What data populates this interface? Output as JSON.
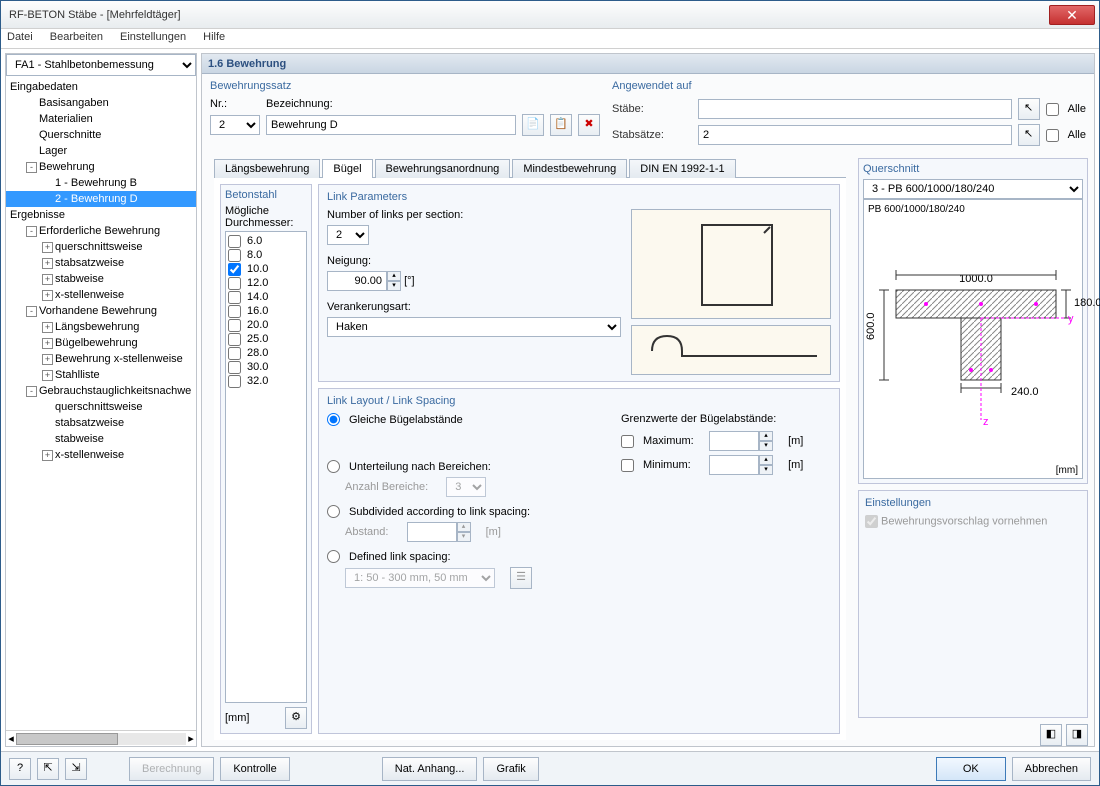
{
  "window": {
    "title": "RF-BETON Stäbe - [Mehrfeldtäger]"
  },
  "menu": [
    "Datei",
    "Bearbeiten",
    "Einstellungen",
    "Hilfe"
  ],
  "leftCase": "FA1 - Stahlbetonbemessung",
  "tree": [
    {
      "t": "Eingabedaten",
      "lvl": 1
    },
    {
      "t": "Basisangaben",
      "lvl": 2
    },
    {
      "t": "Materialien",
      "lvl": 2
    },
    {
      "t": "Querschnitte",
      "lvl": 2
    },
    {
      "t": "Lager",
      "lvl": 2
    },
    {
      "t": "Bewehrung",
      "lvl": 2,
      "exp": "-"
    },
    {
      "t": "1 - Bewehrung B",
      "lvl": 3
    },
    {
      "t": "2 - Bewehrung D",
      "lvl": 3,
      "sel": true
    },
    {
      "t": "Ergebnisse",
      "lvl": 1
    },
    {
      "t": "Erforderliche Bewehrung",
      "lvl": 2,
      "exp": "-"
    },
    {
      "t": "querschnittsweise",
      "lvl": 3,
      "exp": "+"
    },
    {
      "t": "stabsatzweise",
      "lvl": 3,
      "exp": "+"
    },
    {
      "t": "stabweise",
      "lvl": 3,
      "exp": "+"
    },
    {
      "t": "x-stellenweise",
      "lvl": 3,
      "exp": "+"
    },
    {
      "t": "Vorhandene Bewehrung",
      "lvl": 2,
      "exp": "-"
    },
    {
      "t": "Längsbewehrung",
      "lvl": 3,
      "exp": "+"
    },
    {
      "t": "Bügelbewehrung",
      "lvl": 3,
      "exp": "+"
    },
    {
      "t": "Bewehrung x-stellenweise",
      "lvl": 3,
      "exp": "+"
    },
    {
      "t": "Stahlliste",
      "lvl": 3,
      "exp": "+"
    },
    {
      "t": "Gebrauchstauglichkeitsnachwe",
      "lvl": 2,
      "exp": "-"
    },
    {
      "t": "querschnittsweise",
      "lvl": 3
    },
    {
      "t": "stabsatzweise",
      "lvl": 3
    },
    {
      "t": "stabweise",
      "lvl": 3
    },
    {
      "t": "x-stellenweise",
      "lvl": 3,
      "exp": "+"
    }
  ],
  "header": "1.6 Bewehrung",
  "bewehrungssatz": {
    "title": "Bewehrungssatz",
    "nr_label": "Nr.:",
    "nr_value": "2",
    "bez_label": "Bezeichnung:",
    "bez_value": "Bewehrung D"
  },
  "angewendet": {
    "title": "Angewendet auf",
    "stabe_label": "Stäbe:",
    "stabe_value": "",
    "stabsatz_label": "Stabsätze:",
    "stabsatz_value": "2",
    "alle": "Alle"
  },
  "tabs": [
    "Längsbewehrung",
    "Bügel",
    "Bewehrungsanordnung",
    "Mindestbewehrung",
    "DIN EN 1992-1-1"
  ],
  "activeTab": 1,
  "betonstahl": {
    "title": "Betonstahl",
    "sub": "Mögliche Durchmesser:",
    "diams": [
      {
        "v": "6.0",
        "c": false
      },
      {
        "v": "8.0",
        "c": false
      },
      {
        "v": "10.0",
        "c": true
      },
      {
        "v": "12.0",
        "c": false
      },
      {
        "v": "14.0",
        "c": false
      },
      {
        "v": "16.0",
        "c": false
      },
      {
        "v": "20.0",
        "c": false
      },
      {
        "v": "25.0",
        "c": false
      },
      {
        "v": "28.0",
        "c": false
      },
      {
        "v": "30.0",
        "c": false
      },
      {
        "v": "32.0",
        "c": false
      }
    ],
    "unit": "[mm]"
  },
  "linkParams": {
    "title": "Link Parameters",
    "num_label": "Number of links per section:",
    "num_value": "2",
    "neigung_label": "Neigung:",
    "neigung_value": "90.00",
    "neigung_unit": "[°]",
    "verank_label": "Verankerungsart:",
    "verank_value": "Haken"
  },
  "linkLayout": {
    "title": "Link Layout / Link Spacing",
    "gleiche": "Gleiche Bügelabstände",
    "grenz": "Grenzwerte der Bügelabstände:",
    "max": "Maximum:",
    "min": "Minimum:",
    "m": "[m]",
    "unter": "Unterteilung nach Bereichen:",
    "anzahl": "Anzahl Bereiche:",
    "anzahl_v": "3",
    "sub": "Subdivided according to link spacing:",
    "abstand": "Abstand:",
    "def": "Defined link spacing:",
    "def_v": "1: 50 - 300 mm, 50 mm"
  },
  "querschnitt": {
    "title": "Querschnitt",
    "select": "3 - PB 600/1000/180/240",
    "label": "PB 600/1000/180/240",
    "dims": {
      "w": "1000.0",
      "h1": "180.0",
      "h2": "600.0",
      "w2": "240.0"
    },
    "unit": "[mm]"
  },
  "einstellungen": {
    "title": "Einstellungen",
    "cb": "Bewehrungsvorschlag vornehmen"
  },
  "footer": {
    "berechnung": "Berechnung",
    "kontrolle": "Kontrolle",
    "nat": "Nat. Anhang...",
    "grafik": "Grafik",
    "ok": "OK",
    "abbrechen": "Abbrechen"
  }
}
